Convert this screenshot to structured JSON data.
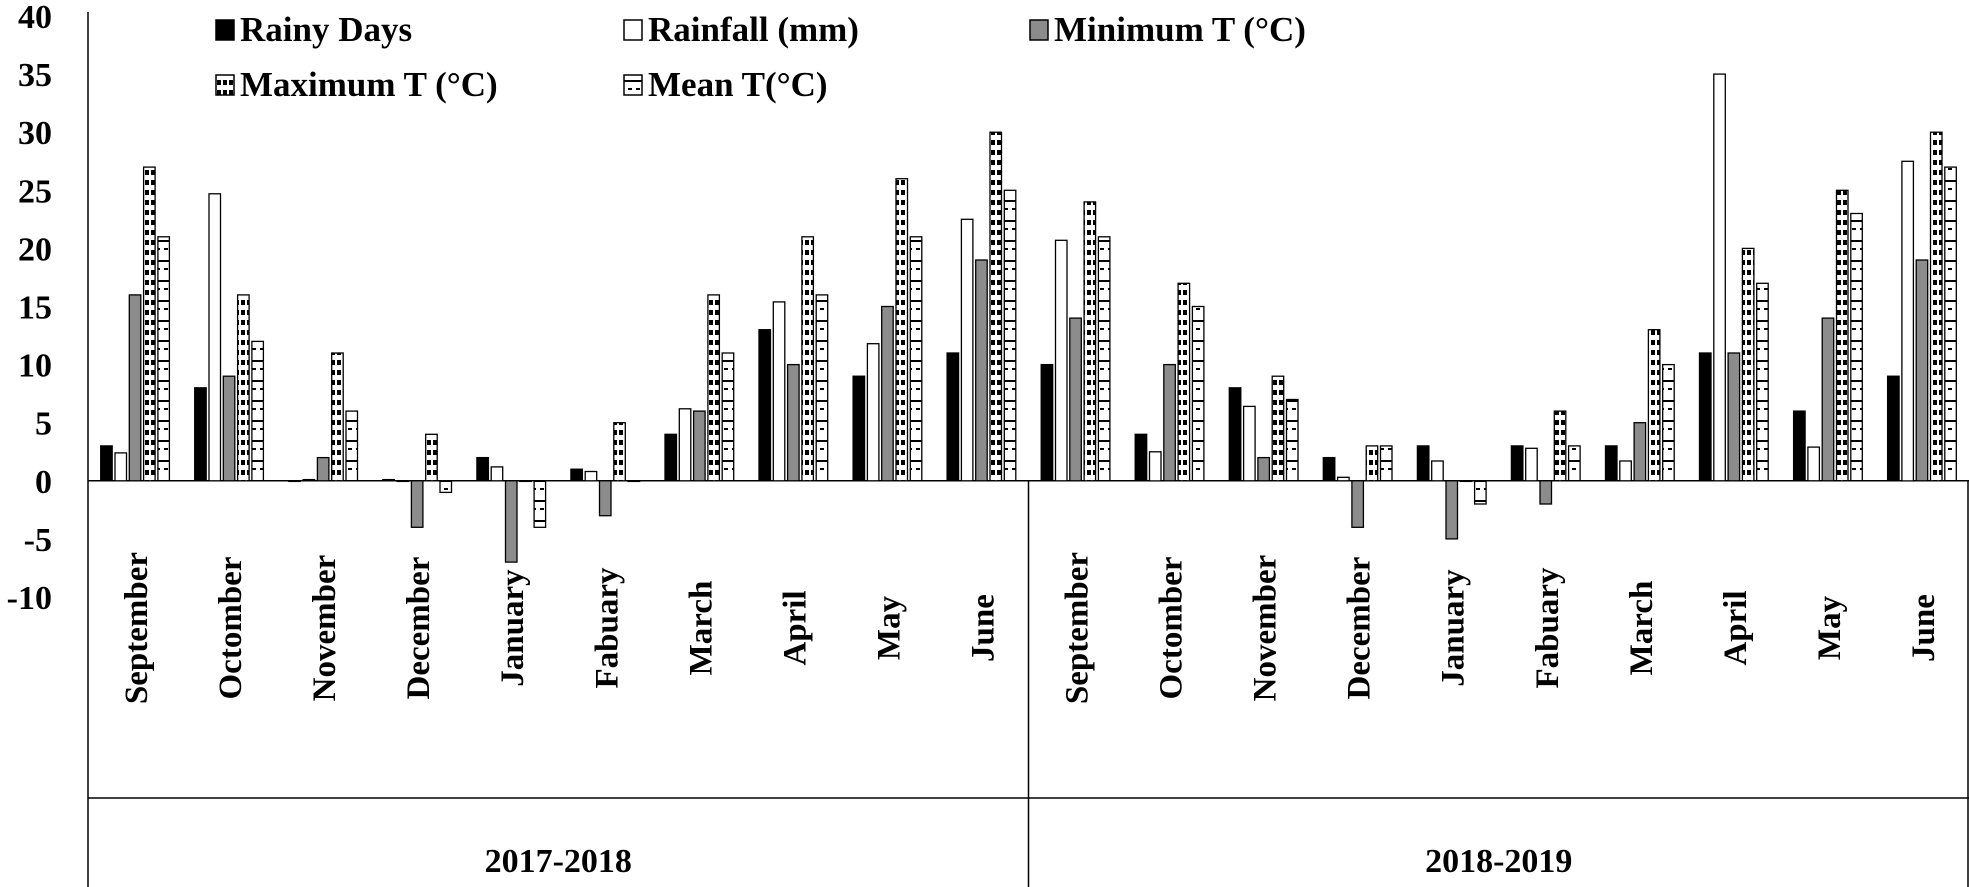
{
  "chart_data": {
    "type": "bar",
    "title": "",
    "xlabel": "",
    "ylabel": "",
    "ylim": [
      -10,
      40
    ],
    "yticks": [
      "40",
      "35",
      "30",
      "25",
      "20",
      "15",
      "10",
      "5",
      "0",
      "-5",
      "-10"
    ],
    "yticks_values": [
      40,
      35,
      30,
      25,
      20,
      15,
      10,
      5,
      0,
      -5,
      -10
    ],
    "grid": false,
    "legend_position": "top",
    "categories": [
      "September",
      "Octomber",
      "November",
      "December",
      "January",
      "Fabuary",
      "March",
      "April",
      "May",
      "June",
      "September",
      "Octomber",
      "November",
      "December",
      "January",
      "Fabuary",
      "March",
      "April",
      "May",
      "June"
    ],
    "groups": [
      {
        "label": "2017-2018"
      },
      {
        "label": "2018-2019"
      }
    ],
    "series": [
      {
        "name": "Rainy Days",
        "pattern": "solid-black",
        "values": [
          3,
          8,
          0,
          0.1,
          2,
          1,
          4,
          13,
          9,
          11,
          10,
          4,
          8,
          2,
          3,
          3,
          3,
          11,
          6,
          9
        ]
      },
      {
        "name": "Rainfall (mm)",
        "pattern": "white",
        "values": [
          2.4,
          24.7,
          0.1,
          0,
          1.2,
          0.8,
          6.2,
          15.4,
          11.8,
          22.5,
          20.7,
          2.5,
          6.4,
          0.3,
          1.7,
          2.8,
          1.7,
          35,
          2.9,
          27.5
        ]
      },
      {
        "name": "Minimum T (°C)",
        "pattern": "gray",
        "values": [
          16,
          9,
          2,
          -4,
          -7,
          -3,
          6,
          10,
          15,
          19,
          14,
          10,
          2,
          -4,
          -5,
          -2,
          5,
          11,
          14,
          19
        ]
      },
      {
        "name": "Maximum T (°C)",
        "pattern": "checker",
        "values": [
          27,
          16,
          11,
          4,
          0,
          5,
          16,
          21,
          26,
          30,
          24,
          17,
          9,
          3,
          0,
          6,
          13,
          20,
          25,
          30
        ]
      },
      {
        "name": "Mean  T(°C)",
        "pattern": "dashed",
        "values": [
          21,
          12,
          6,
          -1,
          -4,
          0,
          11,
          16,
          21,
          25,
          21,
          15,
          7,
          3,
          -2,
          3,
          10,
          17,
          23,
          27
        ]
      }
    ]
  }
}
